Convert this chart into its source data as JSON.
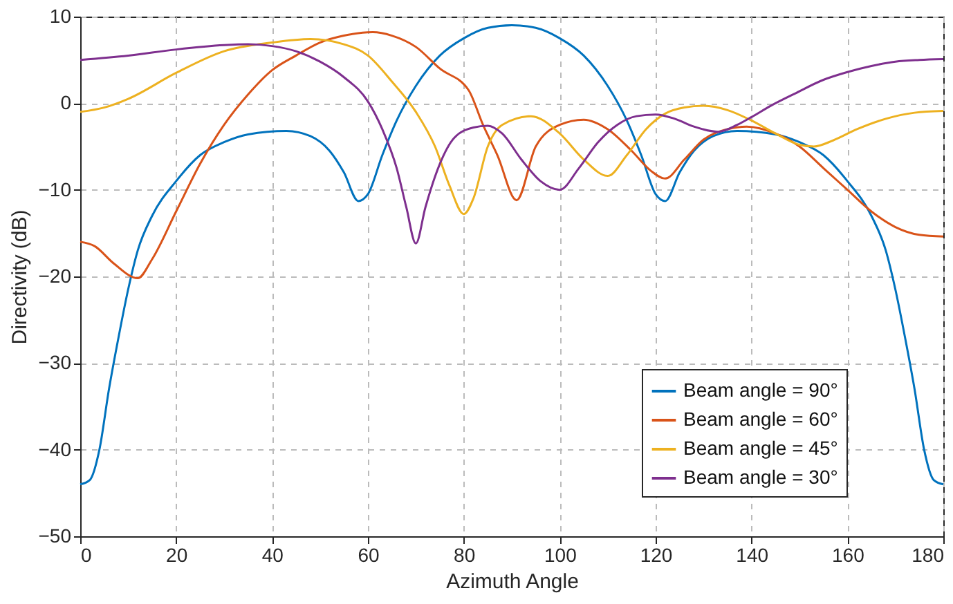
{
  "chart_data": {
    "type": "line",
    "xlabel": "Azimuth Angle",
    "ylabel": "Directivity (dB)",
    "xlim": [
      0,
      180
    ],
    "xticks": [
      0,
      20,
      40,
      60,
      80,
      100,
      120,
      140,
      160,
      180
    ],
    "ylim": [
      -50,
      10
    ],
    "yticks": [
      -50,
      -40,
      -30,
      -20,
      -10,
      0,
      10
    ],
    "grid": true,
    "legend": "bottom right",
    "line_style": "solid",
    "marker": "none",
    "series": [
      {
        "name": "Beam angle = 90°",
        "color": "#0072bd",
        "x": [
          0,
          2,
          4,
          6,
          8,
          10,
          12,
          15,
          20,
          25,
          30,
          35,
          43,
          48,
          52,
          55,
          58,
          60,
          63,
          66,
          70,
          75,
          80,
          85,
          90,
          95,
          100,
          105,
          110,
          114,
          117,
          120,
          122,
          125,
          128,
          132,
          137,
          145,
          150,
          155,
          160,
          165,
          168,
          170,
          172,
          174,
          176,
          178,
          180
        ],
        "values": [
          -44,
          -43.5,
          -40,
          -33,
          -27,
          -21.5,
          -17,
          -13,
          -9,
          -6,
          -4.5,
          -3.6,
          -3.2,
          -3.8,
          -5.5,
          -8,
          -11.3,
          -10.5,
          -6,
          -2,
          2,
          5.5,
          7.5,
          8.7,
          9,
          8.7,
          7.5,
          5.5,
          2,
          -2,
          -6,
          -10.5,
          -11.3,
          -8,
          -5.5,
          -3.8,
          -3.2,
          -3.6,
          -4.5,
          -6,
          -9,
          -13,
          -17,
          -21.5,
          -27,
          -33,
          -40,
          -43.5,
          -44
        ]
      },
      {
        "name": "Beam angle = 60°",
        "color": "#d95319",
        "x": [
          0,
          3,
          7,
          12,
          15,
          20,
          25,
          30,
          35,
          40,
          45,
          50,
          55,
          61,
          65,
          70,
          75,
          81,
          84,
          87,
          91,
          95,
          100,
          105,
          110,
          115,
          119,
          122,
          126,
          130,
          135,
          139,
          145,
          150,
          155,
          160,
          165,
          170,
          175,
          180
        ],
        "values": [
          -16,
          -16.5,
          -18.5,
          -20.2,
          -18,
          -12.5,
          -7,
          -2.5,
          1,
          3.8,
          5.5,
          7,
          7.8,
          8.2,
          7.8,
          6.5,
          4,
          1.5,
          -2.5,
          -6,
          -11.2,
          -5,
          -2.5,
          -1.9,
          -3,
          -5.5,
          -7.8,
          -8.7,
          -6.5,
          -4.2,
          -3,
          -2.7,
          -3.5,
          -5,
          -7.5,
          -10,
          -12.5,
          -14.3,
          -15.2,
          -15.4
        ]
      },
      {
        "name": "Beam angle = 45°",
        "color": "#edb120",
        "x": [
          0,
          5,
          10,
          20,
          30,
          40,
          48,
          55,
          60,
          65,
          70,
          74,
          77,
          80,
          82,
          85,
          88,
          94,
          100,
          105,
          110,
          114,
          118,
          122,
          126,
          130,
          135,
          140,
          145,
          150,
          153,
          157,
          162,
          168,
          174,
          180
        ],
        "values": [
          -1,
          -0.5,
          0.5,
          3.5,
          6,
          7,
          7.4,
          6.8,
          5.5,
          2.5,
          -1,
          -5,
          -9.5,
          -12.8,
          -11,
          -5,
          -2.5,
          -1.5,
          -3.5,
          -6.5,
          -8.4,
          -6,
          -3,
          -1.2,
          -0.5,
          -0.3,
          -0.8,
          -2,
          -3.5,
          -4.8,
          -5,
          -4.3,
          -3,
          -1.8,
          -1.1,
          -0.9
        ]
      },
      {
        "name": "Beam angle = 30°",
        "color": "#7e2f8e",
        "x": [
          0,
          10,
          20,
          30,
          35,
          40,
          45,
          50,
          55,
          60,
          63,
          66,
          68,
          70,
          72,
          75,
          78,
          82,
          85,
          88,
          92,
          96,
          100,
          104,
          108,
          112,
          116,
          120,
          124,
          128,
          133,
          137,
          140,
          144,
          149,
          155,
          160,
          165,
          170,
          175,
          180
        ],
        "values": [
          5,
          5.5,
          6.2,
          6.7,
          6.8,
          6.6,
          6,
          4.8,
          3,
          0.2,
          -3,
          -7.5,
          -12,
          -16.2,
          -12,
          -7,
          -4,
          -2.8,
          -2.6,
          -3.5,
          -6.5,
          -9,
          -10,
          -7.5,
          -4.5,
          -2.5,
          -1.5,
          -1.3,
          -1.8,
          -2.7,
          -3.3,
          -2.5,
          -1.6,
          -0.3,
          1.1,
          2.7,
          3.6,
          4.3,
          4.8,
          5,
          5.1
        ]
      }
    ]
  }
}
